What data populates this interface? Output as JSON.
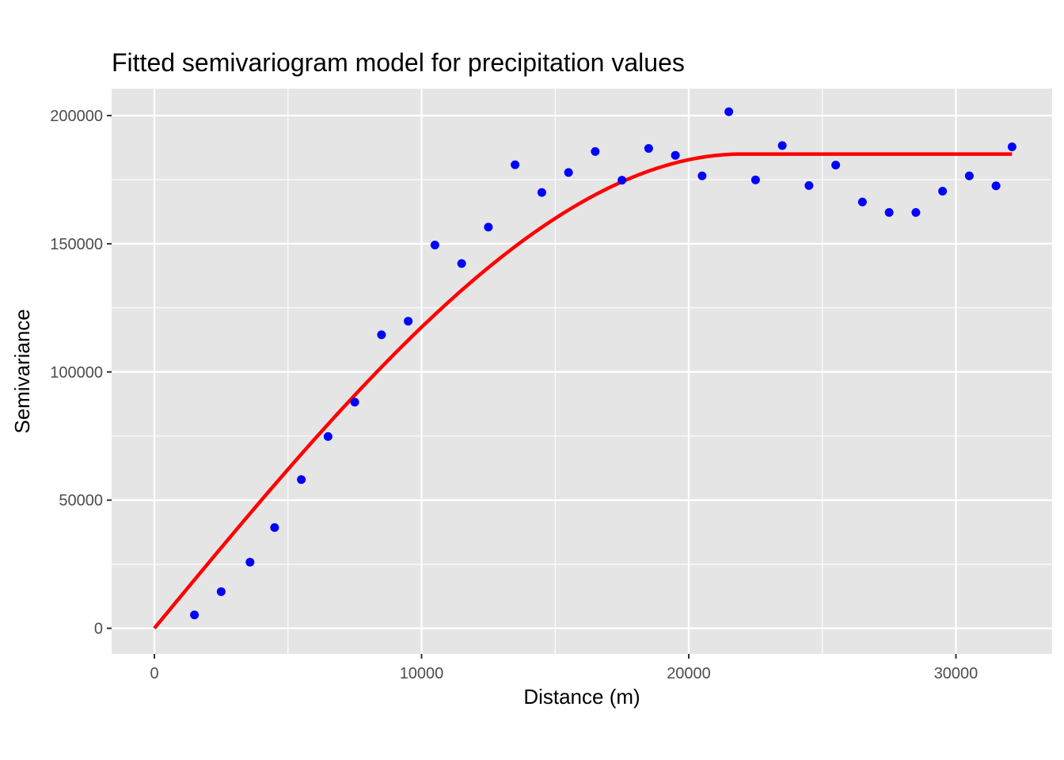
{
  "chart_data": {
    "type": "scatter",
    "title": "Fitted semivariogram model for precipitation values",
    "xlabel": "Distance (m)",
    "ylabel": "Semivariance",
    "xlim": [
      -1600,
      33600
    ],
    "ylim": [
      -10000,
      210500
    ],
    "x_ticks": [
      0,
      10000,
      20000,
      30000
    ],
    "x_tick_labels": [
      "0",
      "10000",
      "20000",
      "30000"
    ],
    "y_ticks": [
      0,
      50000,
      100000,
      150000,
      200000
    ],
    "y_tick_labels": [
      "0",
      "50000",
      "100000",
      "150000",
      "200000"
    ],
    "grid": true,
    "points": {
      "color": "#0000ff",
      "x": [
        1500,
        2500,
        3580,
        4500,
        5500,
        6500,
        7500,
        8500,
        9500,
        10500,
        11500,
        12500,
        13500,
        14500,
        15500,
        16500,
        17500,
        18500,
        19500,
        20500,
        21500,
        22500,
        23500,
        24500,
        25500,
        26500,
        27500,
        28500,
        29500,
        30500,
        31500,
        32100
      ],
      "y": [
        5200,
        14300,
        25800,
        39300,
        58000,
        74800,
        88200,
        114500,
        119800,
        149500,
        142300,
        156500,
        180800,
        170000,
        177800,
        186000,
        174800,
        187200,
        184500,
        176500,
        201500,
        174900,
        188300,
        172700,
        180700,
        166300,
        162200,
        162200,
        170500,
        176500,
        172600,
        187800
      ]
    },
    "model_line": {
      "color": "#ff0000",
      "model": "spherical",
      "nugget": 0,
      "sill": 185000,
      "range": 22000,
      "x_max": 32100
    }
  }
}
